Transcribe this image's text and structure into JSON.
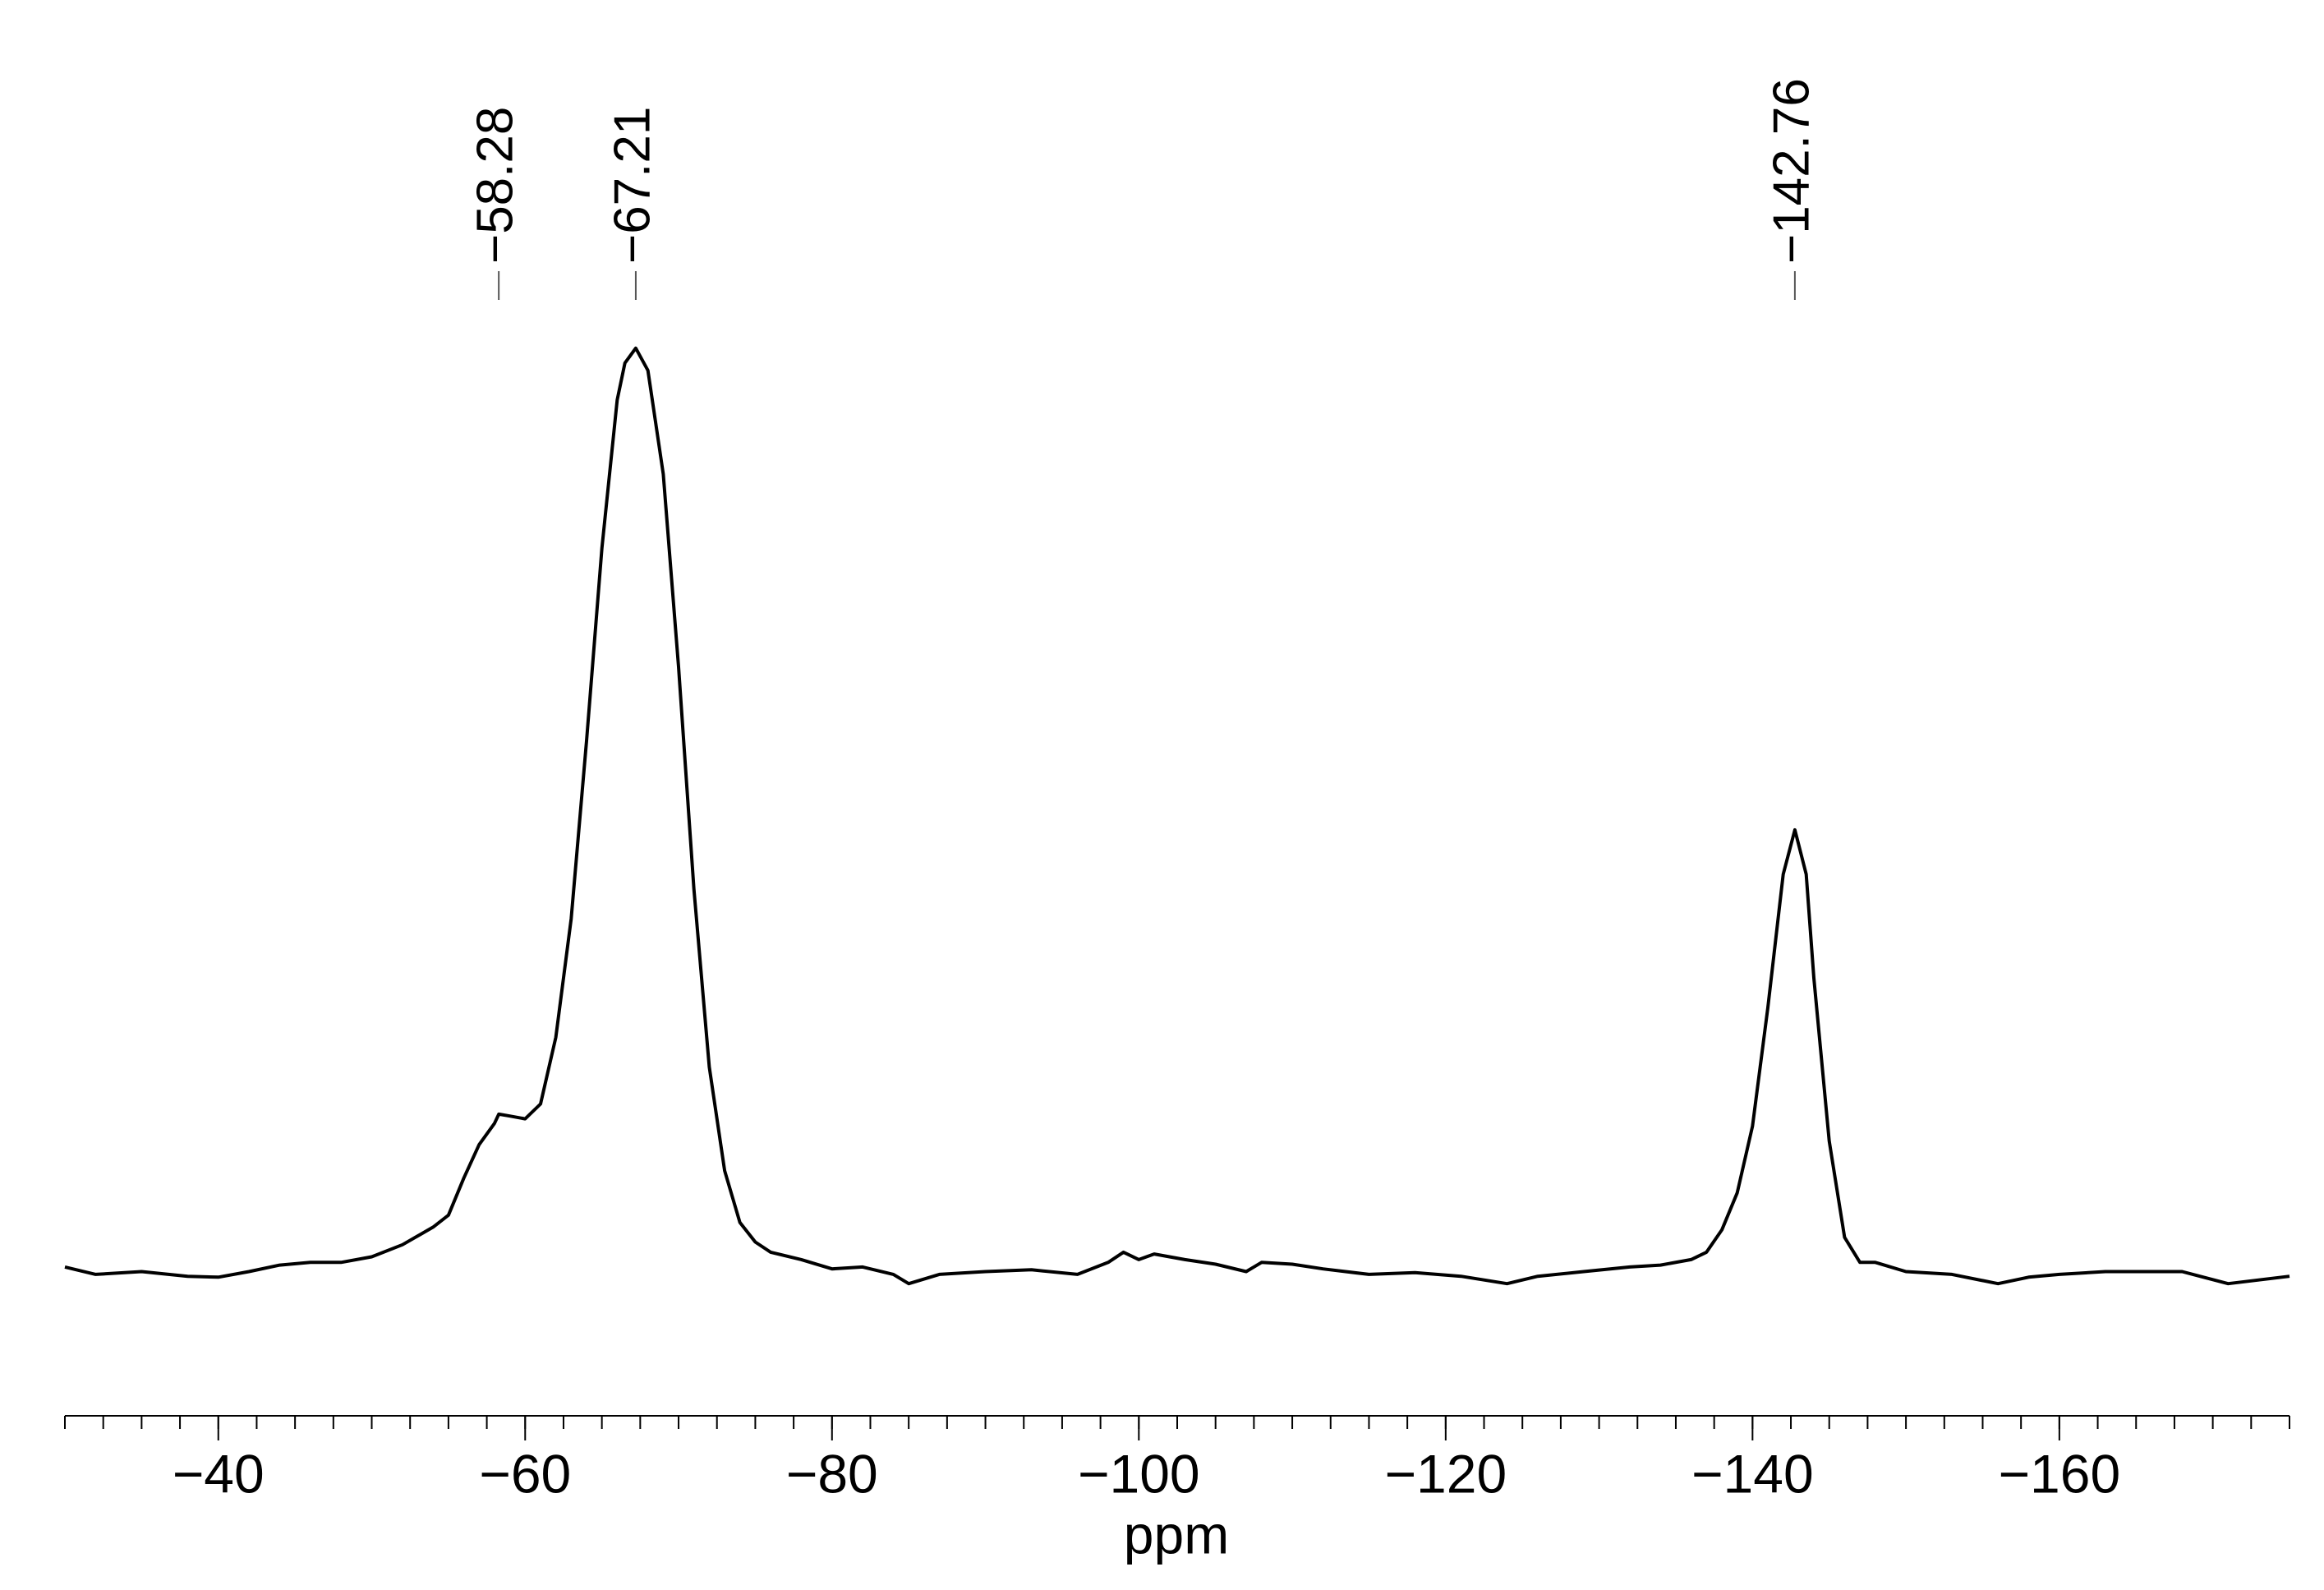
{
  "chart_data": {
    "type": "line",
    "x_label": "ppm",
    "x": [
      -30,
      -32,
      -35,
      -38,
      -40,
      -42,
      -44,
      -46,
      -48,
      -50,
      -52,
      -54,
      -55,
      -56,
      -57,
      -58,
      -58.28,
      -59,
      -60,
      -61,
      -62,
      -63,
      -64,
      -65,
      -66,
      -66.5,
      -67.21,
      -68,
      -69,
      -70,
      -71,
      -72,
      -73,
      -74,
      -75,
      -76,
      -78,
      -80,
      -82,
      -84,
      -85,
      -87,
      -90,
      -93,
      -96,
      -98,
      -99,
      -100,
      -101,
      -103,
      -105,
      -107,
      -108,
      -110,
      -112,
      -115,
      -118,
      -121,
      -124,
      -126,
      -129,
      -132,
      -134,
      -136,
      -137,
      -138,
      -139,
      -140,
      -141,
      -142,
      -142.76,
      -143.5,
      -144,
      -145,
      -146,
      -147,
      -148,
      -150,
      -153,
      -156,
      -158,
      -160,
      -163,
      -166,
      -168,
      -171,
      -173,
      -175
    ],
    "values": [
      0.8,
      0,
      0.3,
      -0.2,
      -0.3,
      0.3,
      1,
      1.3,
      1.3,
      1.9,
      3.2,
      5.1,
      6.4,
      10.4,
      14,
      16.3,
      17.3,
      17.1,
      16.8,
      18.4,
      25.6,
      38.4,
      57.6,
      78.4,
      94.4,
      98.4,
      100,
      97.6,
      86.4,
      65.6,
      41.6,
      22.4,
      11.2,
      5.6,
      3.5,
      2.4,
      1.6,
      0.6,
      0.8,
      0,
      -1,
      0,
      0.3,
      0.5,
      0,
      1.3,
      2.4,
      1.6,
      2.2,
      1.6,
      1.1,
      0.3,
      1.3,
      1.1,
      0.6,
      0,
      0.2,
      -0.2,
      -1,
      -0.2,
      0.3,
      0.8,
      1,
      1.6,
      2.4,
      4.8,
      8.8,
      16,
      28.8,
      43.2,
      48,
      43.2,
      32,
      14.4,
      4,
      1.3,
      1.3,
      0.3,
      0,
      -1,
      -0.3,
      0,
      0.3,
      0.3,
      0.3,
      -1,
      -0.6,
      -0.2
    ],
    "color": "#000000",
    "xlim": [
      -30,
      -175
    ],
    "ylim": [
      -15,
      110
    ],
    "xticks": [
      {
        "value": -40,
        "label": "−40"
      },
      {
        "value": -60,
        "label": "−60"
      },
      {
        "value": -80,
        "label": "−80"
      },
      {
        "value": -100,
        "label": "−100"
      },
      {
        "value": -120,
        "label": "−120"
      },
      {
        "value": -140,
        "label": "−140"
      },
      {
        "value": -160,
        "label": "−160"
      }
    ],
    "xticks_minor": [
      -30,
      -32.5,
      -35,
      -37.5,
      -40,
      -42.5,
      -45,
      -47.5,
      -50,
      -52.5,
      -55,
      -57.5,
      -60,
      -62.5,
      -65,
      -67.5,
      -70,
      -72.5,
      -75,
      -77.5,
      -80,
      -82.5,
      -85,
      -87.5,
      -90,
      -92.5,
      -95,
      -97.5,
      -100,
      -102.5,
      -105,
      -107.5,
      -110,
      -112.5,
      -115,
      -117.5,
      -120,
      -122.5,
      -125,
      -127.5,
      -130,
      -132.5,
      -135,
      -137.5,
      -140,
      -142.5,
      -145,
      -147.5,
      -150,
      -152.5,
      -155,
      -157.5,
      -160,
      -162.5,
      -165,
      -167.5,
      -170,
      -172.5,
      -175
    ],
    "annotations": [
      {
        "x": -58.28,
        "label": "−58.28"
      },
      {
        "x": -67.21,
        "label": "−67.21"
      },
      {
        "x": -142.76,
        "label": "−142.76"
      }
    ]
  }
}
